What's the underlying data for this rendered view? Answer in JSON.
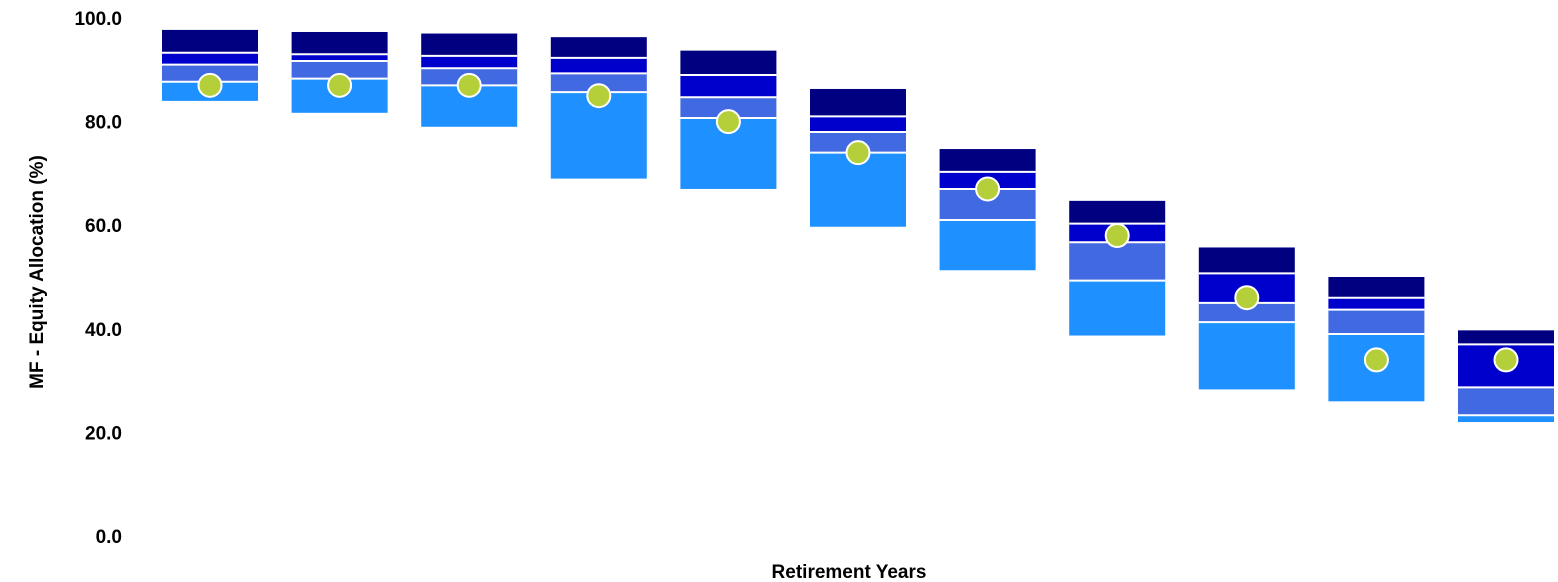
{
  "chart_data": {
    "type": "floating-bar-percentile",
    "title": "",
    "xlabel": "Retirement Years",
    "ylabel": "MF - Equity Allocation (%)",
    "ylim": [
      0,
      100
    ],
    "yticks": [
      "0.0",
      "20.0",
      "40.0",
      "60.0",
      "80.0",
      "100.0"
    ],
    "ytick_values": [
      0,
      20,
      40,
      60,
      80,
      100
    ],
    "grid": false,
    "legend": "none",
    "colors": {
      "band_low": "#1e90ff",
      "band_mid_low": "#4169e1",
      "band_mid_high": "#0000cd",
      "band_high": "#000080",
      "marker": "#b5cf3a",
      "separator": "#ffffff"
    },
    "series": [
      {
        "name": "",
        "values": [
          84.0,
          81.7,
          79.0,
          69.0,
          67.0,
          59.7,
          51.3,
          38.7,
          28.3,
          26.0,
          22.0
        ]
      },
      {
        "name": "",
        "values": [
          87.7,
          88.3,
          87.0,
          85.7,
          80.7,
          74.0,
          61.0,
          49.3,
          41.3,
          39.0,
          23.3
        ]
      },
      {
        "name": "",
        "values": [
          91.0,
          91.7,
          90.3,
          89.3,
          84.7,
          78.0,
          67.0,
          56.7,
          45.0,
          43.7,
          28.7
        ]
      },
      {
        "name": "",
        "values": [
          93.3,
          93.0,
          92.7,
          92.3,
          89.0,
          81.0,
          70.3,
          60.3,
          50.7,
          46.0,
          37.0
        ]
      },
      {
        "name": "",
        "values": [
          97.7,
          97.3,
          97.0,
          96.3,
          93.7,
          86.3,
          74.7,
          64.7,
          55.7,
          50.0,
          39.7
        ]
      }
    ],
    "markers": [
      87.0,
      87.0,
      87.0,
      85.0,
      80.0,
      74.0,
      67.0,
      58.0,
      46.0,
      34.0,
      34.0
    ]
  }
}
